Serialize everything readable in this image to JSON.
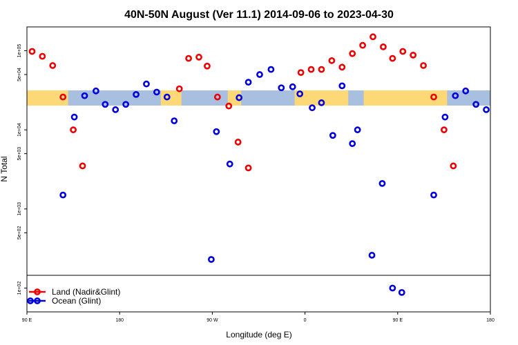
{
  "chart_data": {
    "type": "scatter",
    "title": "40N-50N August (Ver 11.1)   2014-09-06 to 2023-04-30",
    "xlabel": "Longitude (deg E)",
    "ylabel": "N Total",
    "x_ticks": [
      {
        "lon": -270,
        "label": "90 E"
      },
      {
        "lon": -180,
        "label": "180"
      },
      {
        "lon": -90,
        "label": "90 W"
      },
      {
        "lon": 0,
        "label": "0"
      },
      {
        "lon": 90,
        "label": "90 E"
      },
      {
        "lon": 180,
        "label": "180"
      }
    ],
    "xlim": [
      -270,
      180
    ],
    "y_scale": "log",
    "ylim": [
      50,
      200000
    ],
    "y_ticks": [
      {
        "value": 100,
        "label": "1e+02"
      },
      {
        "value": 500,
        "label": "5e+02"
      },
      {
        "value": 1000,
        "label": "1e+03"
      },
      {
        "value": 5000,
        "label": "5e+03"
      },
      {
        "value": 10000,
        "label": "1e+04"
      },
      {
        "value": 50000,
        "label": "5e+04"
      },
      {
        "value": 100000,
        "label": "1e+05"
      }
    ],
    "series": [
      {
        "name": "Land (Nadir&Glint)",
        "color": "#ee0000",
        "points": [
          {
            "x": -265,
            "y": 98000
          },
          {
            "x": -255,
            "y": 85000
          },
          {
            "x": -245,
            "y": 65000
          },
          {
            "x": -235,
            "y": 26000
          },
          {
            "x": -225,
            "y": 10000
          },
          {
            "x": -216,
            "y": 3500
          },
          {
            "x": -122,
            "y": 33000
          },
          {
            "x": -113,
            "y": 80000
          },
          {
            "x": -103,
            "y": 83000
          },
          {
            "x": -95,
            "y": 64000
          },
          {
            "x": -85,
            "y": 26000
          },
          {
            "x": -74,
            "y": 20000
          },
          {
            "x": -65,
            "y": 7000
          },
          {
            "x": -55,
            "y": 3300
          },
          {
            "x": -4,
            "y": 53000
          },
          {
            "x": 6,
            "y": 58000
          },
          {
            "x": 16,
            "y": 58000
          },
          {
            "x": 26,
            "y": 75000
          },
          {
            "x": 36,
            "y": 62000
          },
          {
            "x": 46,
            "y": 92000
          },
          {
            "x": 56,
            "y": 117000
          },
          {
            "x": 66,
            "y": 150000
          },
          {
            "x": 76,
            "y": 112000
          },
          {
            "x": 85,
            "y": 80000
          },
          {
            "x": 95,
            "y": 98000
          },
          {
            "x": 105,
            "y": 88000
          },
          {
            "x": 115,
            "y": 65000
          },
          {
            "x": 125,
            "y": 26000
          },
          {
            "x": 135,
            "y": 10000
          },
          {
            "x": 144,
            "y": 3500
          }
        ]
      },
      {
        "name": "Ocean (Glint)",
        "color": "#0000dd",
        "points": [
          {
            "x": -235,
            "y": 1500
          },
          {
            "x": -224,
            "y": 14500
          },
          {
            "x": -214,
            "y": 27000
          },
          {
            "x": -203,
            "y": 31000
          },
          {
            "x": -194,
            "y": 21000
          },
          {
            "x": -184,
            "y": 18000
          },
          {
            "x": -174,
            "y": 21000
          },
          {
            "x": -164,
            "y": 28000
          },
          {
            "x": -154,
            "y": 38000
          },
          {
            "x": -144,
            "y": 30000
          },
          {
            "x": -134,
            "y": 26000
          },
          {
            "x": -127,
            "y": 13000
          },
          {
            "x": -91,
            "y": 230
          },
          {
            "x": -86,
            "y": 9500
          },
          {
            "x": -73,
            "y": 3700
          },
          {
            "x": -64,
            "y": 25500
          },
          {
            "x": -55,
            "y": 40000
          },
          {
            "x": -44,
            "y": 50000
          },
          {
            "x": -33,
            "y": 58000
          },
          {
            "x": -23,
            "y": 34000
          },
          {
            "x": -12,
            "y": 35000
          },
          {
            "x": -5,
            "y": 28500
          },
          {
            "x": 7,
            "y": 19000
          },
          {
            "x": 16,
            "y": 22000
          },
          {
            "x": 27,
            "y": 8500
          },
          {
            "x": 36,
            "y": 36000
          },
          {
            "x": 46,
            "y": 6700
          },
          {
            "x": 51,
            "y": 10000
          },
          {
            "x": 65,
            "y": 260
          },
          {
            "x": 75,
            "y": 2100
          },
          {
            "x": 85,
            "y": 100
          },
          {
            "x": 94,
            "y": 88
          },
          {
            "x": 125,
            "y": 1500
          },
          {
            "x": 136,
            "y": 14500
          },
          {
            "x": 146,
            "y": 27000
          },
          {
            "x": 156,
            "y": 31000
          },
          {
            "x": 166,
            "y": 21000
          },
          {
            "x": 176,
            "y": 18000
          }
        ]
      }
    ],
    "legend": {
      "placement": "bottom-left",
      "entries": [
        "Land (Nadir&Glint)",
        "Ocean (Glint)"
      ]
    },
    "map_strip_colors": {
      "ocean": "#a9bfe0",
      "land": "#fdd877"
    }
  }
}
